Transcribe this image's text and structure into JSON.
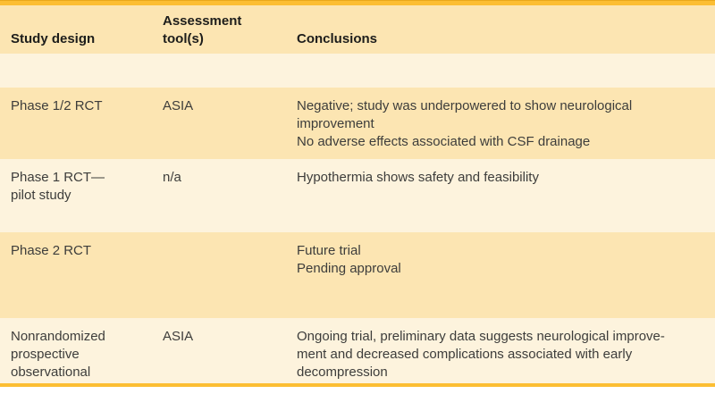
{
  "colors": {
    "accent_gold": "#fcbe33",
    "accent_gold_dark": "#e9a81c",
    "row_dark": "#fce5b2",
    "row_light": "#fdf3dd",
    "header_text": "#1d1d1b",
    "body_text": "#3d3d3b"
  },
  "table": {
    "columns": [
      {
        "label": "Study design"
      },
      {
        "label": "Assessment\ntool(s)"
      },
      {
        "label": "Conclusions"
      }
    ],
    "rows": [
      {
        "study_design": "",
        "assessment": "",
        "conclusions": ""
      },
      {
        "study_design": "Phase 1/2 RCT",
        "assessment": "ASIA",
        "conclusions": "Negative; study was underpowered to show neurological\nimprovement\nNo adverse effects associated with CSF drainage"
      },
      {
        "study_design": "Phase 1 RCT—\npilot study",
        "assessment": "n/a",
        "conclusions": "Hypothermia shows safety and feasibility"
      },
      {
        "study_design": "Phase 2 RCT",
        "assessment": "",
        "conclusions": "Future trial\nPending approval"
      },
      {
        "study_design": "Nonrandomized\nprospective\nobservational",
        "assessment": "ASIA",
        "conclusions": "Ongoing trial, preliminary data suggests neurological improve-\nment and decreased complications associated with early\ndecompression"
      }
    ]
  }
}
